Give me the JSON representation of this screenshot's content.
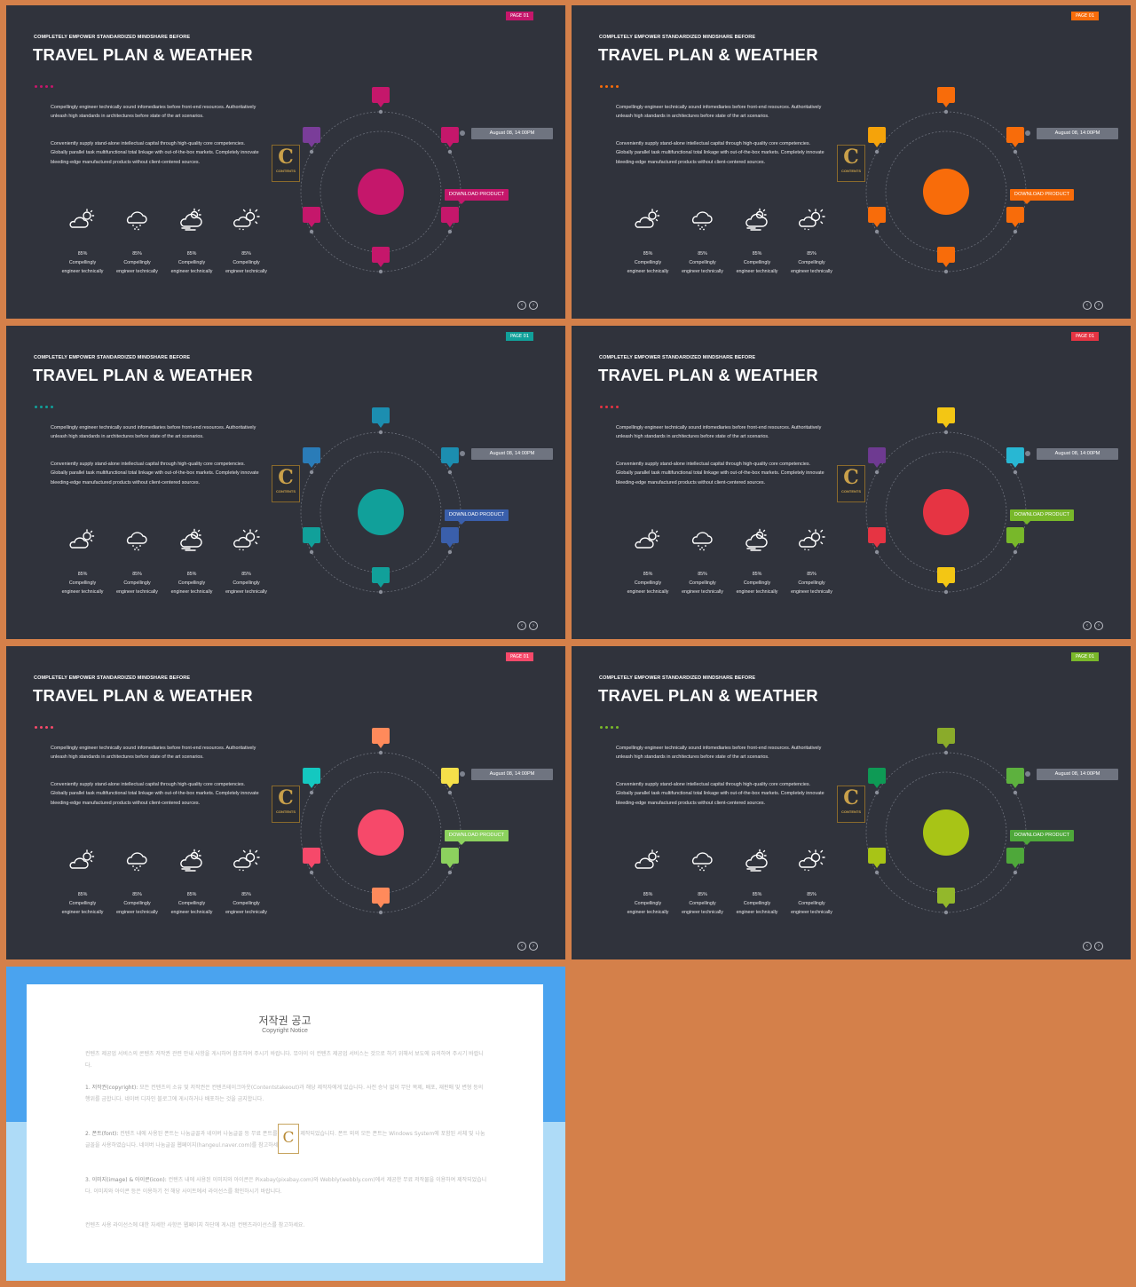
{
  "slides": [
    {
      "page": "PAGE 01",
      "subtitle": "COMPLETELY  EMPOWER  STANDARDIZED  MINDSHARE  BEFORE",
      "title": "TRAVEL PLAN & WEATHER",
      "accent": "#c5176b",
      "sun": "#c5176b",
      "dots": [
        "#c5176b",
        "#c5176b",
        "#c5176b",
        "#c5176b"
      ],
      "markers": [
        "#c5176b",
        "#c5176b",
        "#c5176b",
        "#c5176b",
        "#c5176b",
        "#7a3d99"
      ]
    },
    {
      "page": "PAGE 01",
      "subtitle": "COMPLETELY  EMPOWER  STANDARDIZED  MINDSHARE  BEFORE",
      "title": "TRAVEL PLAN & WEATHER",
      "accent": "#f86c0a",
      "sun": "#f86c0a",
      "dots": [
        "#f86c0a",
        "#f86c0a",
        "#f86c0a",
        "#f86c0a"
      ],
      "markers": [
        "#f86c0a",
        "#f86c0a",
        "#f86c0a",
        "#f86c0a",
        "#f86c0a",
        "#f5a30a"
      ]
    },
    {
      "page": "PAGE 01",
      "subtitle": "COMPLETELY  EMPOWER  STANDARDIZED  MINDSHARE  BEFORE",
      "title": "TRAVEL PLAN & WEATHER",
      "accent": "#11a09a",
      "sun": "#11a09a",
      "dots": [
        "#11a09a",
        "#11a09a",
        "#11a09a",
        "#11a09a"
      ],
      "markers": [
        "#1c8eb0",
        "#1c8eb0",
        "#3a5fab",
        "#11a09a",
        "#11a09a",
        "#2a7cb8"
      ]
    },
    {
      "page": "PAGE 01",
      "subtitle": "COMPLETELY  EMPOWER  STANDARDIZED  MINDSHARE  BEFORE",
      "title": "TRAVEL PLAN & WEATHER",
      "accent": "#e63443",
      "sun": "#e63443",
      "dots": [
        "#e63443",
        "#e63443",
        "#e63443",
        "#e63443"
      ],
      "markers": [
        "#f3c614",
        "#28b7d3",
        "#78b82a",
        "#f3c614",
        "#e63443",
        "#6e3a91"
      ]
    },
    {
      "page": "PAGE 01",
      "subtitle": "COMPLETELY  EMPOWER  STANDARDIZED  MINDSHARE  BEFORE",
      "title": "TRAVEL PLAN & WEATHER",
      "accent": "#f6496a",
      "sun": "#f6496a",
      "dots": [
        "#f6496a",
        "#f6496a",
        "#f6496a",
        "#f6496a"
      ],
      "markers": [
        "#ff8a5b",
        "#f5e04a",
        "#8cd15e",
        "#ff8a5b",
        "#f6496a",
        "#14c8c0"
      ]
    },
    {
      "page": "PAGE 01",
      "subtitle": "COMPLETELY  EMPOWER  STANDARDIZED  MINDSHARE  BEFORE",
      "title": "TRAVEL PLAN & WEATHER",
      "accent": "#7ab82a",
      "sun": "#a8c416",
      "dots": [
        "#7ab82a",
        "#7ab82a",
        "#7ab82a",
        "#7ab82a"
      ],
      "markers": [
        "#8aab2a",
        "#5db13e",
        "#4ea83a",
        "#93b82b",
        "#a8c416",
        "#0e9a55"
      ]
    }
  ],
  "common": {
    "para1": "Compellingly engineer technically sound infomediaries before front-end resources. Authoritatively unleash high standards in architectures before state of the art scenarios.",
    "para2": "Conveniently supply stand-alone intellectual capital through high-quality core competencies. Globally parallel task multifunctional total linkage with out-of-the-box markets. Completely innovate bleeding-edge manufactured products without client-centered sources.",
    "weather": [
      {
        "icon": "partly-cloudy-icon",
        "pct": "85%",
        "l1": "Compellingly",
        "l2": "engineer technically"
      },
      {
        "icon": "rain-cloud-icon",
        "pct": "85%",
        "l1": "Compellingly",
        "l2": "engineer technically"
      },
      {
        "icon": "windy-sun-icon",
        "pct": "85%",
        "l1": "Compellingly",
        "l2": "engineer technically"
      },
      {
        "icon": "sun-cloud-icon",
        "pct": "85%",
        "l1": "Compellingly",
        "l2": "engineer technically"
      }
    ],
    "date": "August 08, 14:00PM",
    "download": "DOWNLOAD  PRODUCT",
    "logo_letter": "C",
    "logo_text": "CONTENTS"
  },
  "copyright": {
    "title": "저작권 공고",
    "subtitle": "Copyright Notice",
    "intro": "컨텐츠 제공업 서비스의 콘텐츠 저작권 관련 안내 사항을 게시하여 참조하여 주시기 바랍니다. 뮤아이 이 컨텐츠 제공업 서비스는 것으로 하기 위해서 보도에 유의하여 주시기 바랍니다.",
    "s1_head": "1. 저작권(copyright):",
    "s1_body": " 모든 컨텐츠의 소유 및 저작권은 컨텐츠테이크아웃(Contentstakeout)과 해당 제작자에게 있습니다. 사전 승낙 없이 무단 복제, 배포, 재판매 및 변형 등의 행위를 금합니다. 네이버 디자인 블로그에 게시하거나 배포하는 것을 금지합니다.",
    "s2_head": "2. 폰트(font):",
    "s2_body": " 컨텐츠 내에 사용된 폰트는 나눔글꼴과 네이버 나눔글꼴 등 무료 폰트를 사용하여 제작되었습니다. 폰트 외의 모든 폰트는 Windows System에 포함된 서체 및 나눔글꼴을 사용하였습니다. 네이버 나눔글꼴 웹페이지(hangeul.naver.com)를 참고하세요.",
    "s3_head": "3. 이미지(image) & 아이콘(icon):",
    "s3_body": " 컨텐츠 내에 사용된 이미지와 아이콘은 Pixabay(pixabay.com)와 Webbly(webbly.com)에서 제공한 무료 저작물을 이용하여 제작되었습니다. 이미지와 아이콘 등은 이용하기 전 해당 사이트에서 라이선스를 확인하시기 바랍니다.",
    "outro": "컨텐츠 사용 라이선스에 대한 자세한 사항은 웹페이지 하단에 게시된 컨텐츠라이선스를 참고하세요.",
    "logo_letter": "C"
  }
}
